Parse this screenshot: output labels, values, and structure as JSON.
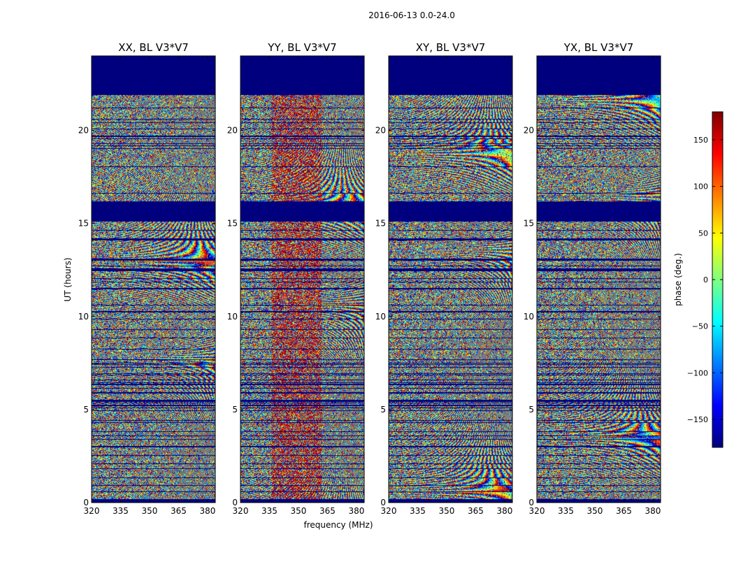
{
  "chart_data": {
    "type": "heatmap",
    "suptitle": "2016-06-13 0.0-24.0",
    "xlabel": "frequency (MHz)",
    "ylabel": "UT (hours)",
    "xlim": [
      320,
      384
    ],
    "ylim": [
      0,
      24
    ],
    "x_ticks": [
      320,
      335,
      350,
      365,
      380
    ],
    "y_ticks": [
      0,
      5,
      10,
      15,
      20
    ],
    "panels": [
      {
        "title": "XX, BL V3*V7"
      },
      {
        "title": "YY, BL V3*V7"
      },
      {
        "title": "XY, BL V3*V7"
      },
      {
        "title": "YX, BL V3*V7"
      }
    ],
    "masked_ut_ranges": [
      [
        0,
        0.2
      ],
      [
        12.5,
        12.6
      ],
      [
        15.1,
        16.2
      ],
      [
        21.9,
        24.0
      ]
    ],
    "colorbar": {
      "label": "phase (deg.)",
      "range": [
        -180,
        180
      ],
      "ticks": [
        150,
        100,
        50,
        0,
        -50,
        -100,
        -150
      ],
      "tick_labels": [
        "150",
        "100",
        "50",
        "0",
        "−50",
        "−100",
        "−150"
      ],
      "colormap": "jet",
      "colors": [
        "#00007f",
        "#0000ff",
        "#007fff",
        "#00ffff",
        "#7fff7f",
        "#ffff00",
        "#ff7f00",
        "#ff0000",
        "#7f0000"
      ]
    }
  }
}
